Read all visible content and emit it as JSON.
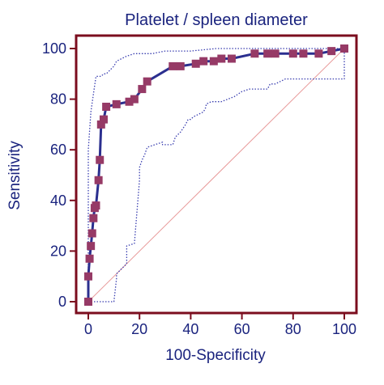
{
  "chart_data": {
    "type": "line",
    "title": "Platelet / spleen diameter",
    "xlabel": "100-Specificity",
    "ylabel": "Sensitivity",
    "xlim": [
      0,
      100
    ],
    "ylim": [
      0,
      100
    ],
    "xticks": [
      "0",
      "20",
      "40",
      "60",
      "80",
      "100"
    ],
    "yticks": [
      "0",
      "20",
      "40",
      "60",
      "80",
      "100"
    ],
    "grid": false,
    "colors": {
      "frame": "#7b0d1e",
      "roc": "#2b2f8f",
      "marker": "#963a66",
      "ci": "#3a3fb0",
      "diagonal": "#e89a9a",
      "text": "#1a237e"
    },
    "series": [
      {
        "role": "roc",
        "x": [
          0,
          0,
          0.5,
          1,
          1.5,
          2,
          2.5,
          3,
          4,
          4.5,
          5,
          6,
          7,
          11,
          16,
          18,
          21,
          23,
          33,
          36,
          42,
          45,
          49,
          52,
          56,
          65,
          70,
          73,
          80,
          84,
          90,
          95,
          100
        ],
        "y": [
          0,
          10,
          17,
          22,
          27,
          33,
          37,
          38,
          48,
          56,
          70,
          72,
          77,
          78,
          79,
          80,
          84,
          87,
          93,
          93,
          94,
          95,
          95,
          96,
          96,
          98,
          98,
          98,
          98,
          98,
          98,
          99,
          100
        ],
        "markers": true
      },
      {
        "role": "ci-upper",
        "x": [
          0,
          0,
          0,
          1,
          2,
          3,
          5,
          6,
          7,
          8,
          9,
          10,
          11,
          13,
          15,
          18,
          25,
          30,
          40,
          50,
          60,
          70,
          80,
          100
        ],
        "y": [
          0,
          40,
          60,
          75,
          82,
          89,
          89,
          90,
          90,
          91,
          92,
          93,
          95,
          96,
          97,
          98,
          98,
          99,
          99,
          100,
          100,
          100,
          100,
          100
        ],
        "markers": false
      },
      {
        "role": "ci-lower",
        "x": [
          0,
          10,
          11,
          11,
          13,
          15,
          15,
          18,
          20,
          20,
          21,
          22,
          23,
          26,
          29,
          29,
          33,
          34,
          36,
          38,
          39,
          40,
          41,
          45,
          46,
          46,
          48,
          52,
          57,
          60,
          63,
          70,
          71,
          73,
          77,
          83,
          87,
          90,
          95,
          100,
          100
        ],
        "y": [
          0,
          0,
          9,
          11,
          13,
          15,
          22,
          23,
          48,
          53,
          56,
          58,
          61,
          62,
          63,
          62,
          62,
          65,
          67,
          70,
          72,
          72,
          73,
          75,
          77,
          78,
          79,
          79,
          81,
          83,
          84,
          84,
          86,
          86,
          88,
          88,
          88,
          88,
          88,
          88,
          100
        ],
        "markers": false
      },
      {
        "role": "diagonal",
        "x": [
          0,
          100
        ],
        "y": [
          0,
          100
        ],
        "markers": false
      }
    ]
  }
}
